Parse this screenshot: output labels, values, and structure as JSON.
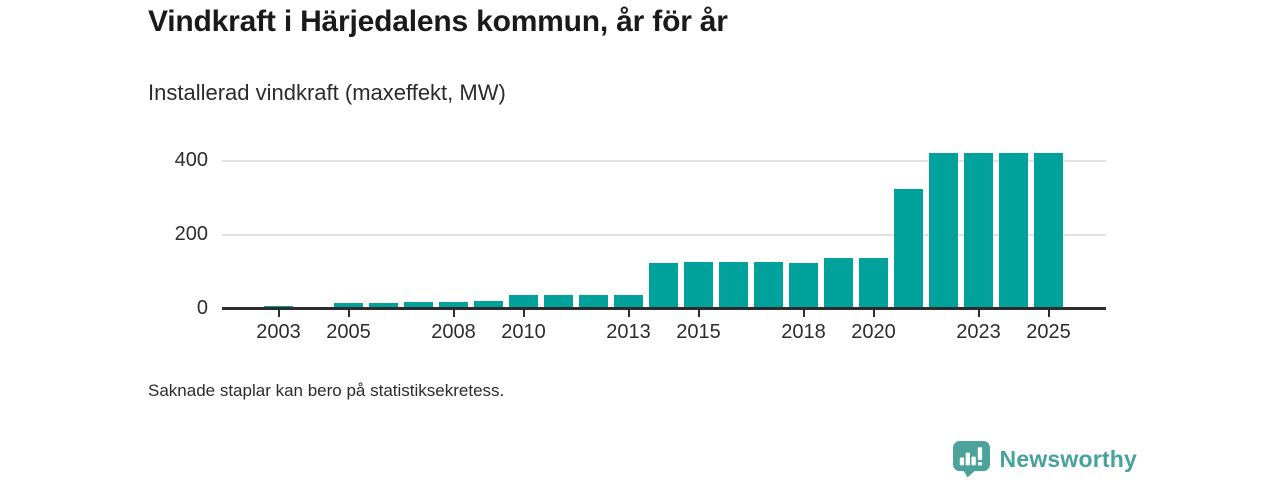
{
  "header": {
    "title": "Vindkraft i Härjedalens kommun, år för år",
    "subtitle": "Installerad vindkraft (maxeffekt, MW)"
  },
  "footnote": "Saknade staplar kan bero på statistiksekretess.",
  "brand": {
    "name": "Newsworthy",
    "icon": "newsworthy-speech-bubble-bar-chart-icon"
  },
  "colors": {
    "bar": "#00a29b",
    "brand_teal": "#47a29b",
    "grid": "#e3e3e3",
    "axis": "#2d2d2d",
    "title_text": "#1a1a1a",
    "body_text": "#2b2b2b"
  },
  "chart_data": {
    "type": "bar",
    "title": "Vindkraft i Härjedalens kommun, år för år",
    "subtitle": "Installerad vindkraft (maxeffekt, MW)",
    "xlabel": "",
    "ylabel": "Installerad vindkraft (maxeffekt, MW)",
    "unit": "MW",
    "categories": [
      2003,
      2004,
      2005,
      2006,
      2007,
      2008,
      2009,
      2010,
      2011,
      2012,
      2013,
      2014,
      2015,
      2016,
      2017,
      2018,
      2019,
      2020,
      2021,
      2022,
      2023,
      2024,
      2025
    ],
    "values": [
      7,
      6,
      17,
      15,
      20,
      18,
      21,
      38,
      39,
      39,
      38,
      125,
      126,
      126,
      126,
      125,
      137,
      137,
      324,
      421,
      421,
      421,
      421
    ],
    "xticks": [
      2003,
      2005,
      2008,
      2010,
      2013,
      2015,
      2018,
      2020,
      2023,
      2025
    ],
    "yticks": [
      0,
      200,
      400
    ],
    "ylim": [
      0,
      455
    ],
    "grid": "horizontal-only",
    "legend": "none",
    "note": "Saknade staplar kan bero på statistiksekretess."
  }
}
